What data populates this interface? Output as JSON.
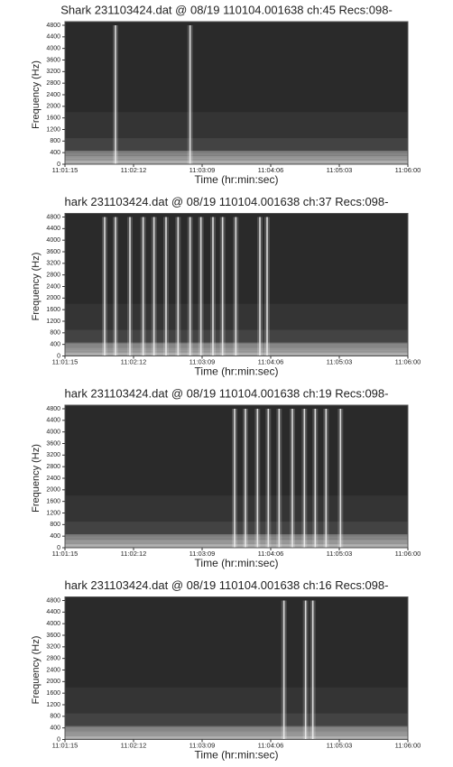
{
  "chart_data": [
    {
      "type": "spectrogram",
      "title": "Shark 231103424.dat @ 08/19 110104.001638 ch:45 Recs:098-",
      "xlabel": "Time (hr:min:sec)",
      "ylabel": "Frequency (Hz)",
      "xlim": [
        "11:01:15",
        "11:06:00"
      ],
      "xticks": [
        "11:01:15",
        "11:02:12",
        "11:03:09",
        "11:04:06",
        "11:05:03",
        "11:06:00"
      ],
      "ylim": [
        0,
        4800
      ],
      "yticks": [
        0,
        400,
        800,
        1200,
        1600,
        2000,
        2400,
        2800,
        3200,
        3600,
        4000,
        4400,
        4800
      ],
      "x": [
        "11:01:57",
        "11:02:59"
      ]
    },
    {
      "type": "spectrogram",
      "title": "hark 231103424.dat @ 08/19 110104.001638 ch:37 Recs:098-",
      "xlabel": "Time (hr:min:sec)",
      "ylabel": "Frequency (Hz)",
      "xlim": [
        "11:01:15",
        "11:06:00"
      ],
      "xticks": [
        "11:01:15",
        "11:02:12",
        "11:03:09",
        "11:04:06",
        "11:05:03",
        "11:06:00"
      ],
      "ylim": [
        0,
        4800
      ],
      "yticks": [
        0,
        400,
        800,
        1200,
        1600,
        2000,
        2400,
        2800,
        3200,
        3600,
        4000,
        4400,
        4800
      ],
      "x": [
        "11:01:48",
        "11:01:57",
        "11:02:09",
        "11:02:20",
        "11:02:29",
        "11:02:39",
        "11:02:49",
        "11:02:59",
        "11:03:08",
        "11:03:18",
        "11:03:26",
        "11:03:37",
        "11:03:57",
        "11:04:03"
      ]
    },
    {
      "type": "spectrogram",
      "title": "hark 231103424.dat @ 08/19 110104.001638 ch:19 Recs:098-",
      "xlabel": "Time (hr:min:sec)",
      "ylabel": "Frequency (Hz)",
      "xlim": [
        "11:01:15",
        "11:06:00"
      ],
      "xticks": [
        "11:01:15",
        "11:02:12",
        "11:03:09",
        "11:04:06",
        "11:05:03",
        "11:06:00"
      ],
      "ylim": [
        0,
        4800
      ],
      "yticks": [
        0,
        400,
        800,
        1200,
        1600,
        2000,
        2400,
        2800,
        3200,
        3600,
        4000,
        4400,
        4800
      ],
      "x": [
        "11:03:36",
        "11:03:45",
        "11:03:55",
        "11:04:04",
        "11:04:13",
        "11:04:24",
        "11:04:34",
        "11:04:43",
        "11:04:52",
        "11:05:04"
      ]
    },
    {
      "type": "spectrogram",
      "title": "hark 231103424.dat @ 08/19 110104.001638 ch:16 Recs:098-",
      "xlabel": "Time (hr:min:sec)",
      "ylabel": "Frequency (Hz)",
      "xlim": [
        "11:01:15",
        "11:06:00"
      ],
      "xticks": [
        "11:01:15",
        "11:02:12",
        "11:03:09",
        "11:04:06",
        "11:05:03",
        "11:06:00"
      ],
      "ylim": [
        0,
        4800
      ],
      "yticks": [
        0,
        400,
        800,
        1200,
        1600,
        2000,
        2400,
        2800,
        3200,
        3600,
        4000,
        4400,
        4800
      ],
      "x": [
        "11:04:17",
        "11:04:35",
        "11:04:41"
      ]
    }
  ]
}
